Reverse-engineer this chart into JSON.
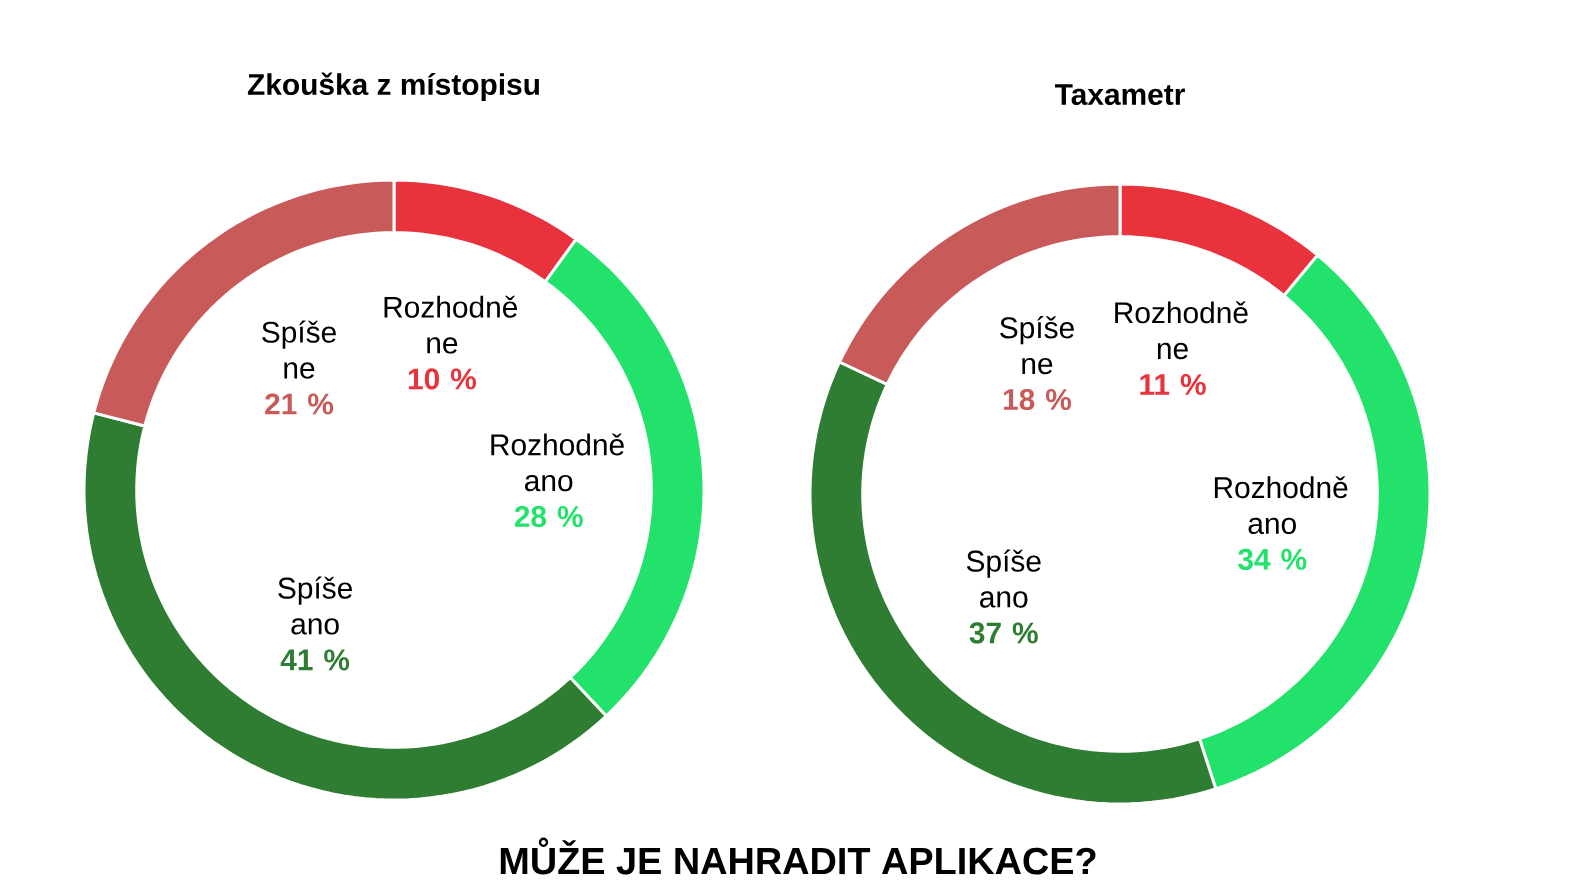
{
  "chart_data": [
    {
      "type": "donut",
      "title": "Zkouška z místopisu",
      "categories": [
        "Rozhodně ne",
        "Rozhodně ano",
        "Spíše ano",
        "Spíše ne"
      ],
      "values": [
        10,
        28,
        41,
        21
      ],
      "colors": [
        "#e8323c",
        "#23e26b",
        "#2f7d32",
        "#c85a5a"
      ],
      "value_labels": [
        "10 %",
        "28 %",
        "41 %",
        "21 %"
      ],
      "annotations": [
        "MŮŽE JE NAHRADIT APLIKACE?"
      ]
    },
    {
      "type": "donut",
      "title": "Taxametr",
      "categories": [
        "Rozhodně ne",
        "Rozhodně ano",
        "Spíše ano",
        "Spíše ne"
      ],
      "values": [
        11,
        34,
        37,
        18
      ],
      "colors": [
        "#e8323c",
        "#23e26b",
        "#2f7d32",
        "#c85a5a"
      ],
      "value_labels": [
        "11 %",
        "34 %",
        "37 %",
        "18 %"
      ]
    }
  ]
}
